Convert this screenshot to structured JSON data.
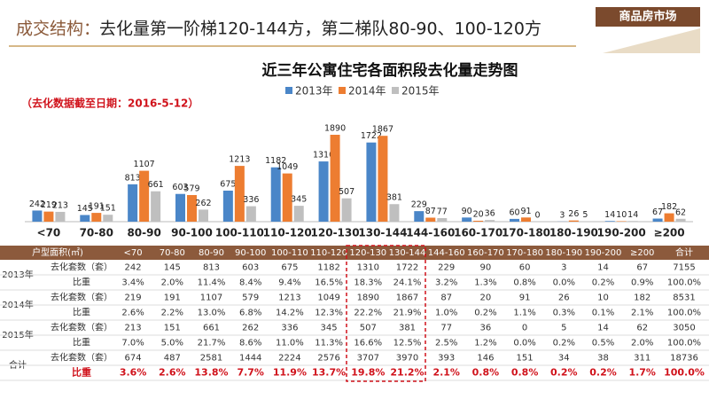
{
  "header": {
    "title_label": "成交结构：",
    "title_text": "去化量第一阶梯120-144方，第二梯队80-90、100-120方",
    "badge": "商品房市场"
  },
  "chart_data": {
    "type": "bar",
    "title": "近三年公寓住宅各面积段去化量走势图",
    "note": "（去化数据截至日期：2016-5-12）",
    "categories": [
      "<70",
      "70-80",
      "80-90",
      "90-100",
      "100-110",
      "110-120",
      "120-130",
      "130-144",
      "144-160",
      "160-170",
      "170-180",
      "180-190",
      "190-200",
      "≥200"
    ],
    "series": [
      {
        "name": "2013年",
        "color": "#4a86c8",
        "values": [
          242,
          145,
          813,
          603,
          675,
          1182,
          1310,
          1722,
          229,
          90,
          60,
          3,
          14,
          67
        ]
      },
      {
        "name": "2014年",
        "color": "#ed7d31",
        "values": [
          219,
          191,
          1107,
          579,
          1213,
          1049,
          1890,
          1867,
          87,
          20,
          91,
          26,
          10,
          182
        ]
      },
      {
        "name": "2015年",
        "color": "#bfbfbf",
        "values": [
          213,
          151,
          661,
          262,
          336,
          345,
          507,
          381,
          77,
          36,
          0,
          5,
          14,
          62
        ]
      }
    ]
  },
  "table": {
    "header": [
      "户型面积(㎡)",
      "<70",
      "70-80",
      "80-90",
      "90-100",
      "100-110",
      "110-120",
      "120-130",
      "130-144",
      "144-160",
      "160-170",
      "170-180",
      "180-190",
      "190-200",
      "≥200",
      "合计"
    ],
    "groups": [
      {
        "name": "2013年",
        "rows": [
          {
            "label": "去化套数（套）",
            "cells": [
              "242",
              "145",
              "813",
              "603",
              "675",
              "1182",
              "1310",
              "1722",
              "229",
              "90",
              "60",
              "3",
              "14",
              "67",
              "7155"
            ]
          },
          {
            "label": "比重",
            "cells": [
              "3.4%",
              "2.0%",
              "11.4%",
              "8.4%",
              "9.4%",
              "16.5%",
              "18.3%",
              "24.1%",
              "3.2%",
              "1.3%",
              "0.8%",
              "0.0%",
              "0.2%",
              "0.9%",
              "100.0%"
            ]
          }
        ]
      },
      {
        "name": "2014年",
        "rows": [
          {
            "label": "去化套数（套）",
            "cells": [
              "219",
              "191",
              "1107",
              "579",
              "1213",
              "1049",
              "1890",
              "1867",
              "87",
              "20",
              "91",
              "26",
              "10",
              "182",
              "8531"
            ]
          },
          {
            "label": "比重",
            "cells": [
              "2.6%",
              "2.2%",
              "13.0%",
              "6.8%",
              "14.2%",
              "12.3%",
              "22.2%",
              "21.9%",
              "1.0%",
              "0.2%",
              "1.1%",
              "0.3%",
              "0.1%",
              "2.1%",
              "100.0%"
            ]
          }
        ]
      },
      {
        "name": "2015年",
        "rows": [
          {
            "label": "去化套数（套）",
            "cells": [
              "213",
              "151",
              "661",
              "262",
              "336",
              "345",
              "507",
              "381",
              "77",
              "36",
              "0",
              "5",
              "14",
              "62",
              "3050"
            ]
          },
          {
            "label": "比重",
            "cells": [
              "7.0%",
              "5.0%",
              "21.7%",
              "8.6%",
              "11.0%",
              "11.3%",
              "16.6%",
              "12.5%",
              "2.5%",
              "1.2%",
              "0.0%",
              "0.2%",
              "0.5%",
              "2.0%",
              "100.0%"
            ]
          }
        ]
      },
      {
        "name": "合计",
        "rows": [
          {
            "label": "去化套数（套）",
            "cells": [
              "674",
              "487",
              "2581",
              "1444",
              "2224",
              "2576",
              "3707",
              "3970",
              "393",
              "146",
              "151",
              "34",
              "38",
              "311",
              "18736"
            ]
          },
          {
            "label": "比重",
            "cells": [
              "3.6%",
              "2.6%",
              "13.8%",
              "7.7%",
              "11.9%",
              "13.7%",
              "19.8%",
              "21.2%",
              "2.1%",
              "0.8%",
              "0.8%",
              "0.2%",
              "0.2%",
              "1.7%",
              "100.0%"
            ]
          }
        ]
      }
    ]
  }
}
